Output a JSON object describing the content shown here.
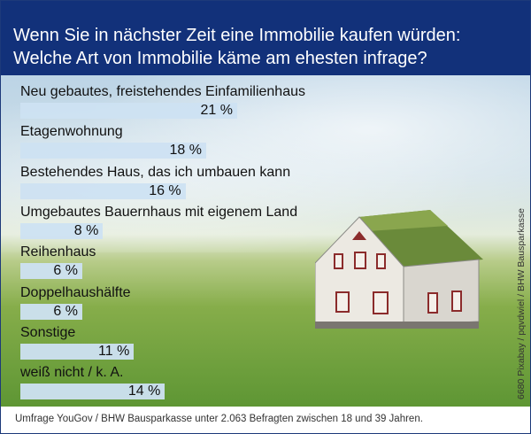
{
  "title": "Wenn Sie in nächster Zeit eine Immobilie kaufen würden:\nWelche Art von Immobilie käme am ehesten infrage?",
  "source": "Umfrage YouGov / BHW Bausparkasse unter 2.063 Befragten zwischen 18 und 39 Jahren.",
  "credit": "6680 Pixabay / pqvdwiel / BHW Bausparkasse",
  "colors": {
    "header": "#12317a",
    "bar": "#cde1f2"
  },
  "chart_data": {
    "type": "bar",
    "orientation": "horizontal",
    "categories": [
      "Neu gebautes, freistehendes Einfamilienhaus",
      "Etagenwohnung",
      "Bestehendes Haus, das ich umbauen kann",
      "Umgebautes Bauernhaus mit eigenem Land",
      "Reihenhaus",
      "Doppelhaushälfte",
      "Sonstige",
      "weiß nicht / k. A."
    ],
    "values": [
      21,
      18,
      16,
      8,
      6,
      6,
      11,
      14
    ],
    "value_labels": [
      "21 %",
      "18 %",
      "16 %",
      "8 %",
      "6 %",
      "6 %",
      "11 %",
      "14 %"
    ],
    "unit": "%"
  }
}
